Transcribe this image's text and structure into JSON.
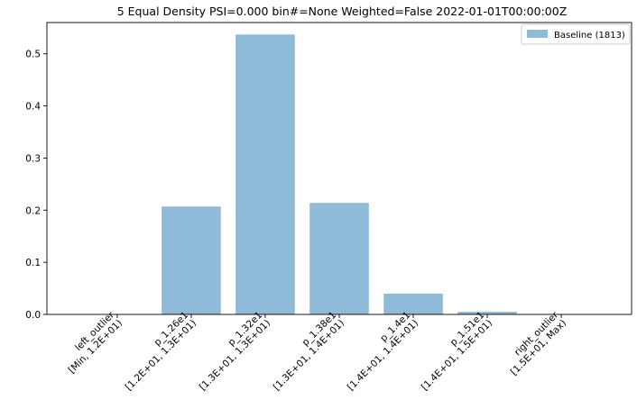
{
  "chart_data": {
    "type": "bar",
    "title": "5 Equal Density PSI=0.000 bin#=None Weighted=False 2022-01-01T00:00:00Z",
    "xlabel": "",
    "ylabel": "",
    "categories": [
      [
        "left_outlier",
        "[Min, 1.2E+01)"
      ],
      [
        "p_1.26e1",
        "[1.2E+01, 1.3E+01)"
      ],
      [
        "p_1.32e1",
        "[1.3E+01, 1.3E+01)"
      ],
      [
        "p_1.38e1",
        "[1.3E+01, 1.4E+01)"
      ],
      [
        "p_1.4e1",
        "[1.4E+01, 1.4E+01)"
      ],
      [
        "p_1.51e1",
        "[1.4E+01, 1.5E+01)"
      ],
      [
        "right_outlier",
        "[1.5E+01, Max)"
      ]
    ],
    "series": [
      {
        "name": "Baseline (1813)",
        "values": [
          0.0,
          0.207,
          0.537,
          0.214,
          0.04,
          0.005,
          0.0
        ],
        "color": "#8fbbd9"
      }
    ],
    "ylim": [
      0,
      0.56
    ],
    "yticks": [
      "0.0",
      "0.1",
      "0.2",
      "0.3",
      "0.4",
      "0.5"
    ],
    "grid": false,
    "legend_position": "top-right"
  }
}
